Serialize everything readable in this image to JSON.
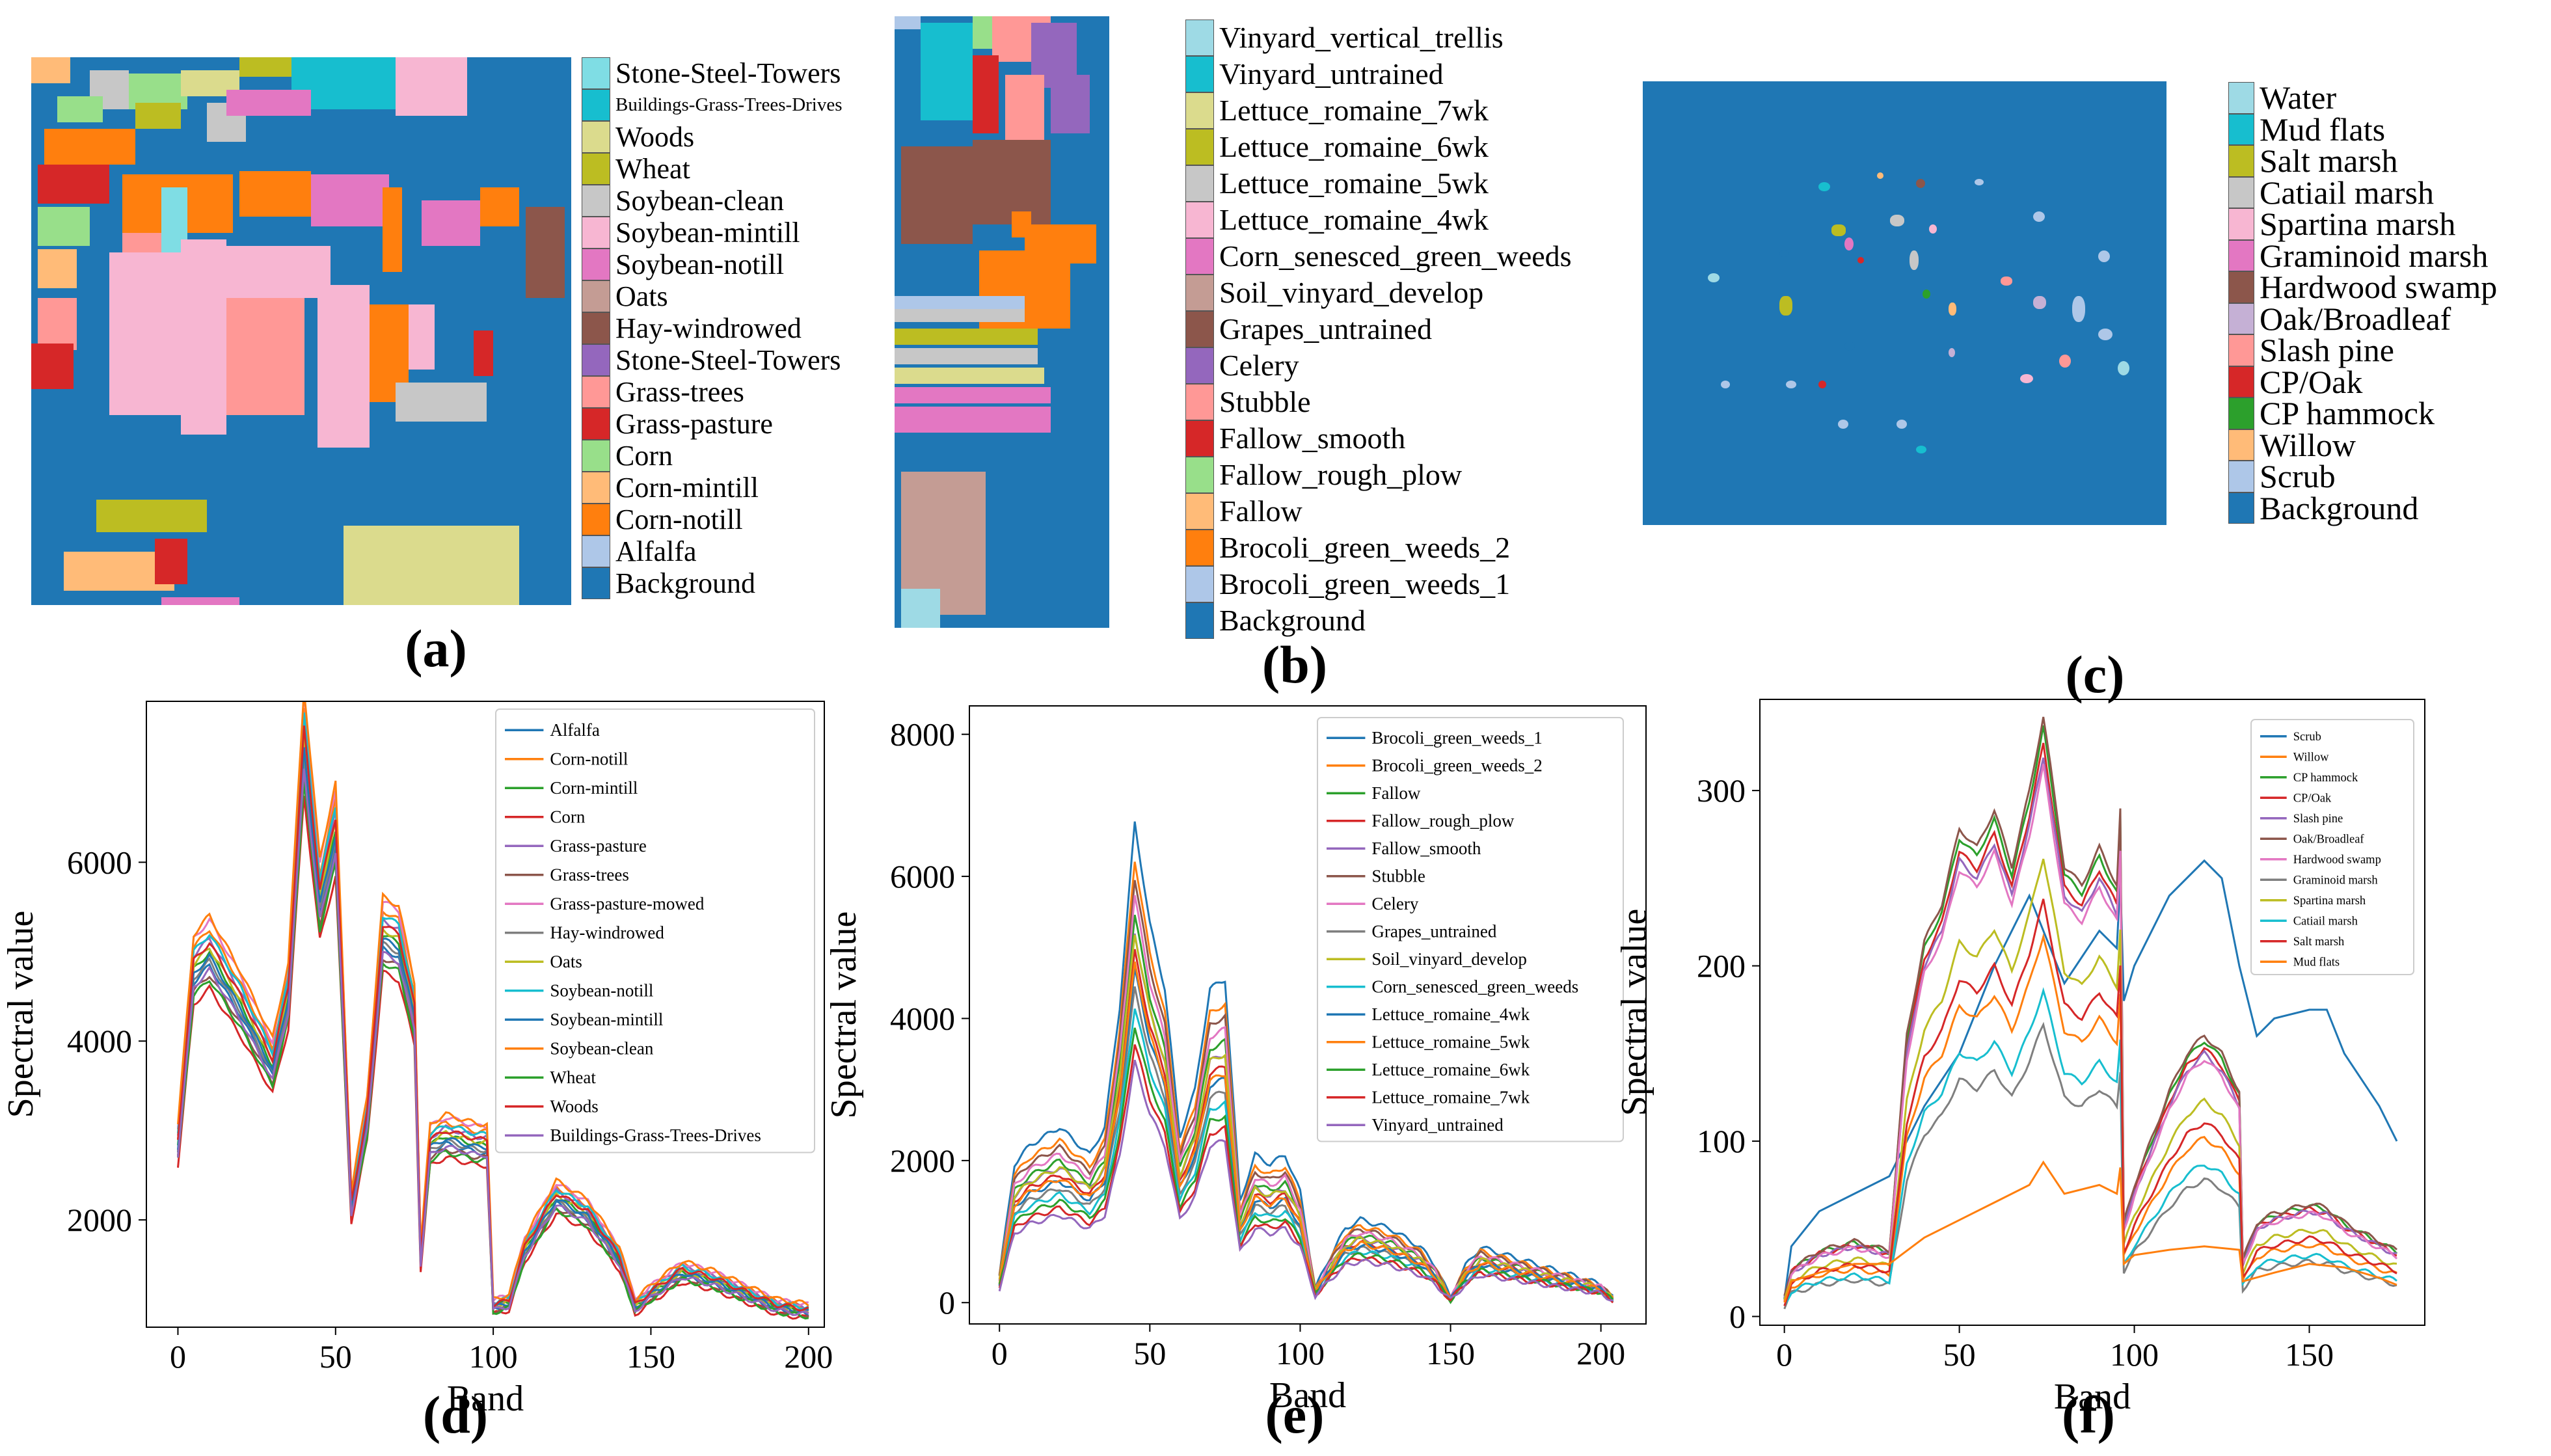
{
  "captions": {
    "a": "(a)",
    "b": "(b)",
    "c": "(c)",
    "d": "(d)",
    "e": "(e)",
    "f": "(f)"
  },
  "legends": {
    "a": [
      {
        "label": "Stone-Steel-Towers",
        "color": "#7fdde4"
      },
      {
        "label": "Buildings-Grass-Trees-Drives",
        "color": "#17becf"
      },
      {
        "label": "Woods",
        "color": "#dbdb8d"
      },
      {
        "label": "Wheat",
        "color": "#bcbd22"
      },
      {
        "label": "Soybean-clean",
        "color": "#c7c7c7"
      },
      {
        "label": "Soybean-mintill",
        "color": "#f7b6d2"
      },
      {
        "label": "Soybean-notill",
        "color": "#e377c2"
      },
      {
        "label": "Oats",
        "color": "#c49c94"
      },
      {
        "label": "Hay-windrowed",
        "color": "#8c564b"
      },
      {
        "label": "Stone-Steel-Towers",
        "color": "#9467bd"
      },
      {
        "label": "Grass-trees",
        "color": "#ff9896"
      },
      {
        "label": "Grass-pasture",
        "color": "#d62728"
      },
      {
        "label": "Corn",
        "color": "#98df8a"
      },
      {
        "label": "Corn-mintill",
        "color": "#ffbb78"
      },
      {
        "label": "Corn-notill",
        "color": "#ff7f0e"
      },
      {
        "label": "Alfalfa",
        "color": "#aec7e8"
      },
      {
        "label": "Background",
        "color": "#1f77b4"
      }
    ],
    "b": [
      {
        "label": "Vinyard_vertical_trellis",
        "color": "#9edae5"
      },
      {
        "label": "Vinyard_untrained",
        "color": "#17becf"
      },
      {
        "label": "Lettuce_romaine_7wk",
        "color": "#dbdb8d"
      },
      {
        "label": "Lettuce_romaine_6wk",
        "color": "#bcbd22"
      },
      {
        "label": "Lettuce_romaine_5wk",
        "color": "#c7c7c7"
      },
      {
        "label": "Lettuce_romaine_4wk",
        "color": "#f7b6d2"
      },
      {
        "label": "Corn_senesced_green_weeds",
        "color": "#e377c2"
      },
      {
        "label": "Soil_vinyard_develop",
        "color": "#c49c94"
      },
      {
        "label": "Grapes_untrained",
        "color": "#8c564b"
      },
      {
        "label": "Celery",
        "color": "#9467bd"
      },
      {
        "label": "Stubble",
        "color": "#ff9896"
      },
      {
        "label": "Fallow_smooth",
        "color": "#d62728"
      },
      {
        "label": "Fallow_rough_plow",
        "color": "#98df8a"
      },
      {
        "label": "Fallow",
        "color": "#ffbb78"
      },
      {
        "label": "Brocoli_green_weeds_2",
        "color": "#ff7f0e"
      },
      {
        "label": "Brocoli_green_weeds_1",
        "color": "#aec7e8"
      },
      {
        "label": "Background",
        "color": "#1f77b4"
      }
    ],
    "c": [
      {
        "label": "Water",
        "color": "#9edae5"
      },
      {
        "label": "Mud flats",
        "color": "#17becf"
      },
      {
        "label": "Salt marsh",
        "color": "#bcbd22"
      },
      {
        "label": "Catiail marsh",
        "color": "#c7c7c7"
      },
      {
        "label": "Spartina marsh",
        "color": "#f7b6d2"
      },
      {
        "label": "Graminoid marsh",
        "color": "#e377c2"
      },
      {
        "label": "Hardwood swamp",
        "color": "#8c564b"
      },
      {
        "label": "Oak/Broadleaf",
        "color": "#c5b0d5"
      },
      {
        "label": "Slash pine",
        "color": "#ff9896"
      },
      {
        "label": "CP/Oak",
        "color": "#d62728"
      },
      {
        "label": "CP hammock",
        "color": "#2ca02c"
      },
      {
        "label": "Willow",
        "color": "#ffbb78"
      },
      {
        "label": "Scrub",
        "color": "#aec7e8"
      },
      {
        "label": "Background",
        "color": "#1f77b4"
      }
    ]
  },
  "chart_data": [
    {
      "id": "d",
      "type": "line",
      "xlabel": "Band",
      "ylabel": "Spectral value",
      "xlim": [
        -10,
        205
      ],
      "ylim": [
        800,
        7800
      ],
      "xticks": [
        0,
        50,
        100,
        150,
        200
      ],
      "yticks": [
        2000,
        4000,
        6000
      ],
      "xtick_labels": [
        "0",
        "50",
        "100",
        "150",
        "200"
      ],
      "ytick_labels": [
        "2000",
        "4000",
        "6000"
      ],
      "x": [
        0,
        5,
        10,
        20,
        30,
        35,
        40,
        45,
        50,
        55,
        60,
        65,
        70,
        75,
        77,
        80,
        85,
        90,
        95,
        98,
        100,
        105,
        110,
        120,
        130,
        140,
        145,
        150,
        160,
        170,
        180,
        190,
        200
      ],
      "base": [
        2900,
        4900,
        5100,
        4500,
        3800,
        4600,
        7500,
        5700,
        6500,
        2200,
        3200,
        5300,
        5200,
        4400,
        1600,
        2900,
        3000,
        2950,
        2900,
        2900,
        1050,
        1100,
        1700,
        2300,
        2100,
        1600,
        1050,
        1200,
        1450,
        1350,
        1200,
        1050,
        1000
      ],
      "series": [
        {
          "name": "Alfalfa",
          "color": "#1f77b4",
          "k": 0.95
        },
        {
          "name": "Corn-notill",
          "color": "#ff7f0e",
          "k": 1.03
        },
        {
          "name": "Corn-mintill",
          "color": "#2ca02c",
          "k": 0.98
        },
        {
          "name": "Corn",
          "color": "#d62728",
          "k": 0.9
        },
        {
          "name": "Grass-pasture",
          "color": "#9467bd",
          "k": 1.01
        },
        {
          "name": "Grass-trees",
          "color": "#8c564b",
          "k": 0.93
        },
        {
          "name": "Grass-pasture-mowed",
          "color": "#e377c2",
          "k": 1.05
        },
        {
          "name": "Hay-windrowed",
          "color": "#7f7f7f",
          "k": 0.96
        },
        {
          "name": "Oats",
          "color": "#bcbd22",
          "k": 0.99
        },
        {
          "name": "Soybean-notill",
          "color": "#17becf",
          "k": 1.02
        },
        {
          "name": "Soybean-mintill",
          "color": "#1f77b4",
          "k": 0.97
        },
        {
          "name": "Soybean-clean",
          "color": "#ff7f0e",
          "k": 1.06
        },
        {
          "name": "Wheat",
          "color": "#2ca02c",
          "k": 0.92
        },
        {
          "name": "Woods",
          "color": "#d62728",
          "k": 1.0
        },
        {
          "name": "Buildings-Grass-Trees-Drives",
          "color": "#9467bd",
          "k": 0.94
        }
      ]
    },
    {
      "id": "e",
      "type": "line",
      "xlabel": "Band",
      "ylabel": "Spectral value",
      "xlim": [
        -10,
        215
      ],
      "ylim": [
        -300,
        8400
      ],
      "xticks": [
        0,
        50,
        100,
        150,
        200
      ],
      "yticks": [
        0,
        2000,
        4000,
        6000,
        8000
      ],
      "xtick_labels": [
        "0",
        "50",
        "100",
        "150",
        "200"
      ],
      "ytick_labels": [
        "0",
        "2000",
        "4000",
        "6000",
        "8000"
      ],
      "x": [
        0,
        5,
        10,
        20,
        30,
        35,
        40,
        45,
        50,
        55,
        60,
        65,
        70,
        75,
        80,
        85,
        90,
        95,
        100,
        105,
        110,
        115,
        120,
        130,
        140,
        145,
        150,
        155,
        160,
        170,
        180,
        190,
        200,
        204
      ],
      "base": [
        300,
        1500,
        1700,
        1900,
        1600,
        1900,
        3200,
        5200,
        4100,
        3400,
        1800,
        2300,
        3400,
        3500,
        1100,
        1600,
        1500,
        1600,
        1200,
        150,
        500,
        800,
        900,
        800,
        600,
        400,
        50,
        400,
        600,
        500,
        400,
        300,
        200,
        50
      ],
      "series": [
        {
          "name": "Brocoli_green_weeds_1",
          "color": "#1f77b4",
          "k": 1.3
        },
        {
          "name": "Brocoli_green_weeds_2",
          "color": "#ff7f0e",
          "k": 1.2
        },
        {
          "name": "Fallow",
          "color": "#2ca02c",
          "k": 1.05
        },
        {
          "name": "Fallow_rough_plow",
          "color": "#d62728",
          "k": 0.95
        },
        {
          "name": "Fallow_smooth",
          "color": "#9467bd",
          "k": 1.0
        },
        {
          "name": "Stubble",
          "color": "#8c564b",
          "k": 1.15
        },
        {
          "name": "Celery",
          "color": "#e377c2",
          "k": 1.1
        },
        {
          "name": "Grapes_untrained",
          "color": "#7f7f7f",
          "k": 0.85
        },
        {
          "name": "Soil_vinyard_develop",
          "color": "#bcbd22",
          "k": 1.0
        },
        {
          "name": "Corn_senesced_green_weeds",
          "color": "#17becf",
          "k": 0.8
        },
        {
          "name": "Lettuce_romaine_4wk",
          "color": "#1f77b4",
          "k": 0.9
        },
        {
          "name": "Lettuce_romaine_5wk",
          "color": "#ff7f0e",
          "k": 0.92
        },
        {
          "name": "Lettuce_romaine_6wk",
          "color": "#2ca02c",
          "k": 0.75
        },
        {
          "name": "Lettuce_romaine_7wk",
          "color": "#d62728",
          "k": 0.7
        },
        {
          "name": "Vinyard_untrained",
          "color": "#9467bd",
          "k": 0.65
        }
      ]
    },
    {
      "id": "f",
      "type": "line",
      "xlabel": "Band",
      "ylabel": "Spectral value",
      "xlim": [
        -7,
        183
      ],
      "ylim": [
        -5,
        352
      ],
      "xticks": [
        0,
        50,
        100,
        150
      ],
      "yticks": [
        0,
        100,
        200,
        300
      ],
      "xtick_labels": [
        "0",
        "50",
        "100",
        "150"
      ],
      "ytick_labels": [
        "0",
        "100",
        "200",
        "300"
      ],
      "x": [
        0,
        2,
        10,
        20,
        30,
        35,
        40,
        45,
        50,
        55,
        60,
        65,
        70,
        74,
        80,
        85,
        90,
        95,
        96,
        97,
        100,
        110,
        115,
        120,
        125,
        130,
        131,
        135,
        140,
        150,
        155,
        160,
        170,
        175
      ],
      "base": [
        10,
        25,
        35,
        40,
        35,
        150,
        200,
        220,
        260,
        250,
        270,
        240,
        280,
        320,
        240,
        230,
        250,
        230,
        270,
        50,
        70,
        120,
        140,
        150,
        140,
        120,
        30,
        50,
        55,
        60,
        58,
        50,
        40,
        35
      ],
      "series": [
        {
          "name": "Scrub",
          "color": "#1f77b4",
          "k": 0
        },
        {
          "name": "Willow",
          "color": "#ff7f0e",
          "k": 0.68
        },
        {
          "name": "CP hammock",
          "color": "#2ca02c",
          "k": 1.05
        },
        {
          "name": "CP/Oak",
          "color": "#d62728",
          "k": 1.02
        },
        {
          "name": "Slash pine",
          "color": "#9467bd",
          "k": 1.0
        },
        {
          "name": "Oak/Broadleaf",
          "color": "#8c564b",
          "k": 1.07
        },
        {
          "name": "Hardwood swamp",
          "color": "#e377c2",
          "k": 0.98
        },
        {
          "name": "Graminoid marsh",
          "color": "#7f7f7f",
          "k": 0.52
        },
        {
          "name": "Spartina marsh",
          "color": "#bcbd22",
          "k": 0.82
        },
        {
          "name": "Catiail marsh",
          "color": "#17becf",
          "k": 0.58
        },
        {
          "name": "Salt marsh",
          "color": "#d62728",
          "k": 0.74
        },
        {
          "name": "Mud flats",
          "color": "#ff7f0e",
          "k": 0.3
        }
      ],
      "special": {
        "Scrub": {
          "x": [
            0,
            2,
            10,
            20,
            30,
            40,
            50,
            60,
            70,
            80,
            90,
            95,
            96,
            97,
            100,
            110,
            120,
            125,
            130,
            135,
            140,
            150,
            155,
            160,
            170,
            175
          ],
          "y": [
            10,
            40,
            60,
            70,
            80,
            120,
            150,
            200,
            240,
            190,
            220,
            210,
            250,
            180,
            200,
            240,
            260,
            250,
            200,
            160,
            170,
            175,
            175,
            150,
            120,
            100
          ]
        },
        "Mud flats": {
          "x": [
            0,
            2,
            10,
            20,
            30,
            40,
            50,
            60,
            70,
            74,
            80,
            90,
            95,
            96,
            97,
            100,
            110,
            120,
            130,
            131,
            140,
            150,
            160,
            170,
            175
          ],
          "y": [
            8,
            20,
            25,
            30,
            30,
            45,
            55,
            65,
            75,
            88,
            70,
            75,
            70,
            85,
            30,
            35,
            38,
            40,
            38,
            20,
            25,
            30,
            28,
            22,
            18
          ]
        }
      }
    }
  ]
}
